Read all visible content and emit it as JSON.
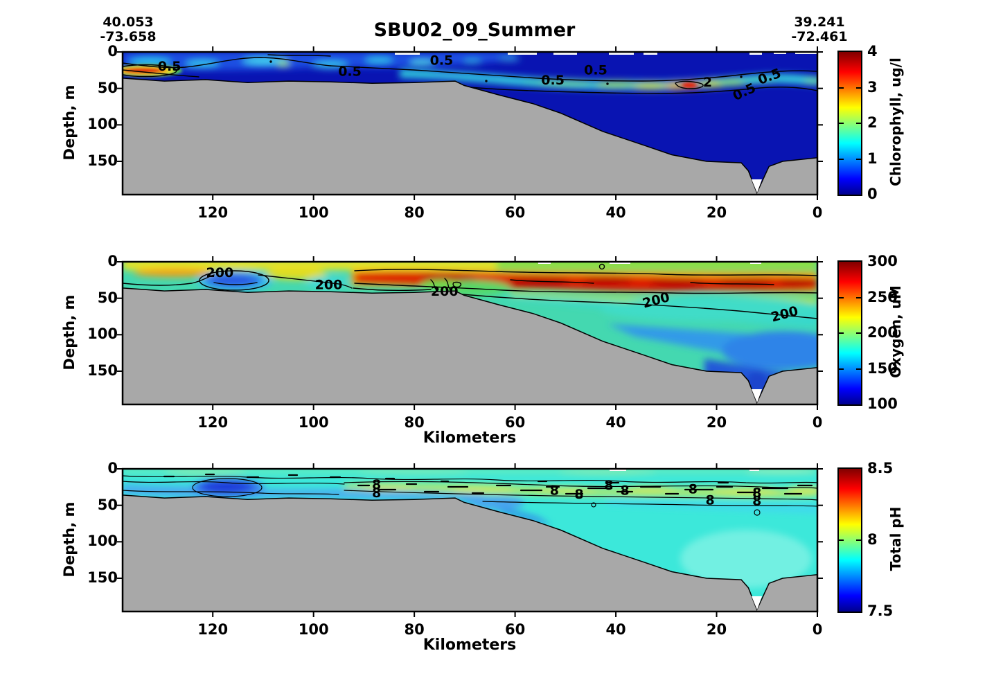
{
  "title": "SBU02_09_Summer",
  "endpoints": {
    "left": {
      "lat": "40.053",
      "lon": "-73.658"
    },
    "right": {
      "lat": "39.241",
      "lon": "-72.461"
    }
  },
  "axes": {
    "x": {
      "label": "Kilometers",
      "ticks": [
        120,
        100,
        80,
        60,
        40,
        20,
        0
      ],
      "max_km": 137.9,
      "reversed": true
    },
    "y": {
      "label": "Depth, m",
      "ticks": [
        0,
        50,
        100,
        150
      ],
      "max_depth_m": 195.6
    }
  },
  "panels": [
    {
      "id": "chlorophyll",
      "colorbar": {
        "title": "Chlorophyll, ug/l",
        "min": 0,
        "max": 4,
        "ticks": [
          0,
          1,
          2,
          3,
          4
        ]
      },
      "contour_labels": [
        {
          "text": "0.5",
          "km": 128.6,
          "depth_m": 20,
          "rot": 0
        },
        {
          "text": "0.5",
          "km": 92.8,
          "depth_m": 27,
          "rot": 0
        },
        {
          "text": "0.5",
          "km": 74.6,
          "depth_m": 12,
          "rot": 0
        },
        {
          "text": "0.5",
          "km": 52.5,
          "depth_m": 39,
          "rot": 0
        },
        {
          "text": "0.5",
          "km": 44.0,
          "depth_m": 25,
          "rot": 0
        },
        {
          "text": "2",
          "km": 21.8,
          "depth_m": 42,
          "rot": 0
        },
        {
          "text": "0.5",
          "km": 14.5,
          "depth_m": 55,
          "rot": -25
        },
        {
          "text": "0.5",
          "km": 9.5,
          "depth_m": 34,
          "rot": -20
        }
      ]
    },
    {
      "id": "oxygen",
      "colorbar": {
        "title": "Oxygen, uM",
        "min": 100,
        "max": 300,
        "ticks": [
          100,
          150,
          200,
          250,
          300
        ]
      },
      "contour_labels": [
        {
          "text": "200",
          "km": 118.6,
          "depth_m": 15,
          "rot": 0
        },
        {
          "text": "200",
          "km": 97.0,
          "depth_m": 32,
          "rot": 0
        },
        {
          "text": "200",
          "km": 74.0,
          "depth_m": 41,
          "rot": 0
        },
        {
          "text": "200",
          "km": 32.0,
          "depth_m": 53,
          "rot": -15
        },
        {
          "text": "200",
          "km": 6.5,
          "depth_m": 72,
          "rot": -15
        }
      ]
    },
    {
      "id": "ph",
      "colorbar": {
        "title": "Total pH",
        "min": 7.5,
        "max": 8.5,
        "ticks": [
          7.5,
          8,
          8.5
        ]
      },
      "contour_labels": [
        {
          "text": "8",
          "km": 87.5,
          "depth_m": 22,
          "rot": 0
        },
        {
          "text": "8",
          "km": 87.5,
          "depth_m": 33,
          "rot": 0
        },
        {
          "text": "8",
          "km": 52.2,
          "depth_m": 30,
          "rot": 0
        },
        {
          "text": "8",
          "km": 47.3,
          "depth_m": 35,
          "rot": 0
        },
        {
          "text": "8",
          "km": 41.4,
          "depth_m": 23,
          "rot": 0
        },
        {
          "text": "8",
          "km": 38.2,
          "depth_m": 30,
          "rot": 0
        },
        {
          "text": "8",
          "km": 24.7,
          "depth_m": 28,
          "rot": 0
        },
        {
          "text": "8",
          "km": 21.3,
          "depth_m": 43,
          "rot": 0
        },
        {
          "text": "8",
          "km": 12.0,
          "depth_m": 33,
          "rot": 0
        },
        {
          "text": "8",
          "km": 12.0,
          "depth_m": 44,
          "rot": 0
        }
      ]
    }
  ],
  "chart_data": {
    "type": "heatmap",
    "subtype": "ocean-section-contour",
    "title": "SBU02_09_Summer",
    "colormap": "jet",
    "x_axis": {
      "label": "Kilometers",
      "range": [
        137.9,
        0
      ],
      "ticks": [
        120,
        100,
        80,
        60,
        40,
        20,
        0
      ],
      "reversed": true
    },
    "y_axis": {
      "label": "Depth, m",
      "range": [
        0,
        195.6
      ],
      "ticks": [
        0,
        50,
        100,
        150
      ]
    },
    "section_endpoints": {
      "start": {
        "lat": 40.053,
        "lon": -73.658
      },
      "end": {
        "lat": 39.241,
        "lon": -72.461
      }
    },
    "seafloor_profile_km_depth_m": [
      [
        137.9,
        36
      ],
      [
        129.6,
        40
      ],
      [
        121.4,
        38
      ],
      [
        113.1,
        42
      ],
      [
        104.9,
        40
      ],
      [
        96.6,
        41
      ],
      [
        88.4,
        43
      ],
      [
        80.1,
        42
      ],
      [
        71.9,
        40
      ],
      [
        70.1,
        46
      ],
      [
        63.2,
        59
      ],
      [
        56.4,
        71
      ],
      [
        50.9,
        84
      ],
      [
        42.6,
        109
      ],
      [
        34.4,
        128
      ],
      [
        28.9,
        141
      ],
      [
        22,
        150
      ],
      [
        15.1,
        152
      ],
      [
        13.7,
        163
      ],
      [
        12,
        193
      ],
      [
        9.6,
        157
      ],
      [
        6.9,
        150
      ],
      [
        0,
        145
      ]
    ],
    "panels": [
      {
        "variable": "Chlorophyll, ug/l",
        "clim": [
          0,
          4
        ],
        "colorbar_ticks": [
          0,
          1,
          2,
          3,
          4
        ],
        "labeled_contour_levels": [
          0.5,
          2
        ],
        "features": [
          "surface layer mostly < 0.5 ug/l (dark blue)",
          "subsurface chlorophyll maximum ~1-2 ug/l at 25-50 m depth from km 80 to km 0",
          "hotspot > 2 ug/l near km 22 at ~45 m",
          "nearshore maximum ~3-4 ug/l at km 130-137, 20-32 m depth"
        ]
      },
      {
        "variable": "Oxygen, uM",
        "clim": [
          100,
          300
        ],
        "colorbar_ticks": [
          100,
          150,
          200,
          250,
          300
        ],
        "labeled_contour_levels": [
          200
        ],
        "features": [
          "surface ~210-240 uM (yellow-green)",
          "low-oxygen pocket ~150 uM near km 117 at 20-35 m",
          "high-oxygen band ~270-300 uM at 15-40 m from km 90 to km 0",
          "oxygen decreases to ~130-160 uM below 100 m on the outer shelf"
        ]
      },
      {
        "variable": "Total pH",
        "clim": [
          7.5,
          8.5
        ],
        "colorbar_ticks": [
          7.5,
          8,
          8.5
        ],
        "labeled_contour_levels": [
          8
        ],
        "features": [
          "most of section near pH 8 (cyan)",
          "low-pH pocket ~7.7 near km 117 at 15-35 m",
          "slightly elevated band ~8.05-8.1 at 20-40 m from km 85 to km 0",
          "near-bottom pH ~7.85-7.95 along the shelf"
        ]
      }
    ]
  }
}
